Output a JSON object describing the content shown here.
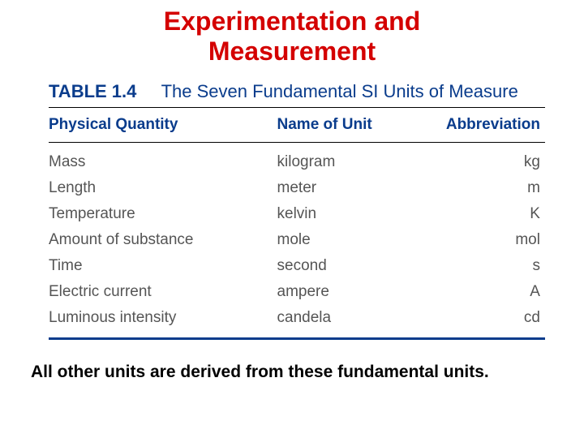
{
  "heading": {
    "line1": "Experimentation and",
    "line2": "Measurement",
    "color": "#d40000",
    "fontsize": 32
  },
  "table": {
    "label": "TABLE 1.4",
    "label_color": "#0a3c8c",
    "title": "The Seven Fundamental SI Units of Measure",
    "title_fontsize": 22,
    "rule_color_top": "#000000",
    "rule_color_bottom": "#0a3c8c",
    "header_color": "#0a3c8c",
    "header_fontsize": 19,
    "body_color": "#555555",
    "body_fontsize": 19,
    "columns": {
      "qty": "Physical Quantity",
      "unit": "Name of Unit",
      "abbr": "Abbreviation"
    },
    "rows": [
      {
        "qty": "Mass",
        "unit": "kilogram",
        "abbr": "kg"
      },
      {
        "qty": "Length",
        "unit": "meter",
        "abbr": "m"
      },
      {
        "qty": "Temperature",
        "unit": "kelvin",
        "abbr": "K"
      },
      {
        "qty": "Amount of substance",
        "unit": "mole",
        "abbr": "mol"
      },
      {
        "qty": "Time",
        "unit": "second",
        "abbr": "s"
      },
      {
        "qty": "Electric current",
        "unit": "ampere",
        "abbr": "A"
      },
      {
        "qty": "Luminous intensity",
        "unit": "candela",
        "abbr": "cd"
      }
    ]
  },
  "footer": {
    "text": "All other units are derived from these fundamental units.",
    "color": "#000000",
    "fontsize": 21
  }
}
